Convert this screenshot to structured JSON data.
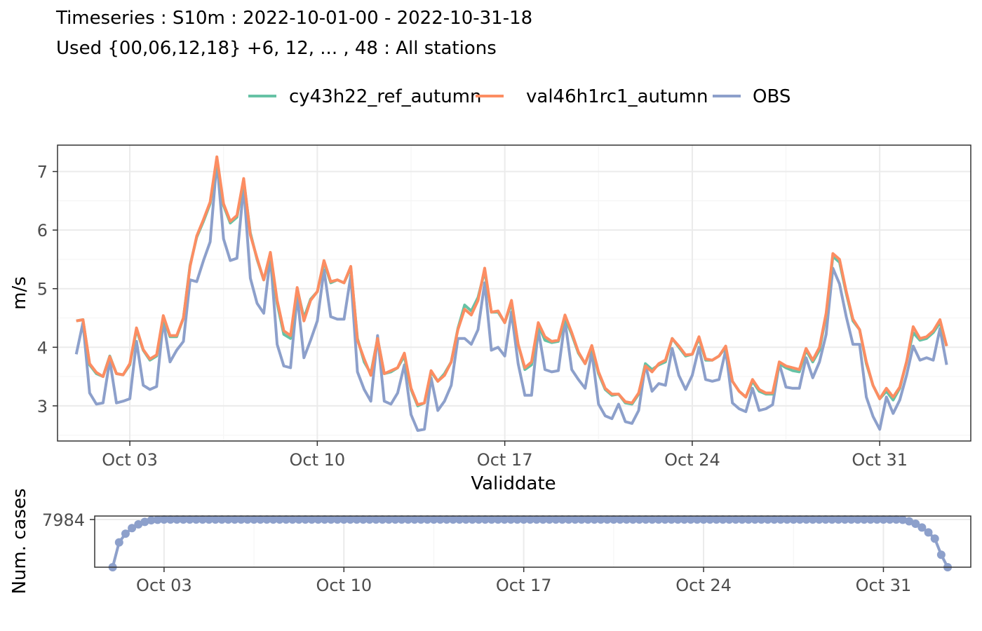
{
  "title_lines": [
    "Timeseries : S10m : 2022-10-01-00 - 2022-10-31-18",
    "Used {00,06,12,18} +6, 12, ... , 48 : All stations"
  ],
  "colors": {
    "cy43h22_ref_autumn": "#66c2a5",
    "val46h1rc1_autumn": "#fc8d62",
    "OBS": "#8da0cb",
    "grid_major": "#ebebeb",
    "grid_minor": "#f5f5f5",
    "panel_border": "#333333",
    "tick_label": "#4d4d4d"
  },
  "chart_data": [
    {
      "type": "line",
      "xlabel": "Validdate",
      "ylabel": "m/s",
      "xlim_days": [
        -0.7,
        33.4
      ],
      "ylim": [
        2.4,
        7.45
      ],
      "x_ticks": [
        {
          "day": 2,
          "label": "Oct 03"
        },
        {
          "day": 9,
          "label": "Oct 10"
        },
        {
          "day": 16,
          "label": "Oct 17"
        },
        {
          "day": 23,
          "label": "Oct 24"
        },
        {
          "day": 30,
          "label": "Oct 31"
        }
      ],
      "y_ticks": [
        3,
        4,
        5,
        6,
        7
      ],
      "grid": true,
      "legend_position": "top",
      "x_start_date": "2022-10-01 06:00",
      "x_step_hours": 6,
      "series": [
        {
          "name": "cy43h22_ref_autumn",
          "values": [
            4.45,
            4.47,
            3.7,
            3.55,
            3.5,
            3.85,
            3.55,
            3.53,
            3.7,
            4.3,
            3.95,
            3.78,
            3.85,
            4.5,
            4.18,
            4.18,
            4.5,
            5.4,
            5.88,
            6.15,
            6.45,
            7.22,
            6.42,
            6.12,
            6.22,
            6.85,
            5.95,
            5.5,
            5.15,
            5.58,
            4.75,
            4.22,
            4.15,
            5.0,
            4.5,
            4.82,
            4.95,
            5.45,
            5.1,
            5.15,
            5.1,
            5.35,
            4.15,
            3.75,
            3.55,
            4.15,
            3.55,
            3.58,
            3.65,
            3.85,
            3.28,
            3.0,
            3.05,
            3.58,
            3.42,
            3.55,
            3.75,
            4.32,
            4.72,
            4.62,
            4.85,
            5.3,
            4.6,
            4.6,
            4.42,
            4.75,
            4.05,
            3.62,
            3.7,
            4.38,
            4.12,
            4.08,
            4.1,
            4.5,
            4.22,
            3.9,
            3.72,
            4.0,
            3.55,
            3.28,
            3.18,
            3.2,
            3.05,
            3.03,
            3.2,
            3.72,
            3.62,
            3.7,
            3.75,
            4.15,
            4.0,
            3.85,
            3.88,
            4.15,
            3.78,
            3.78,
            3.85,
            4.0,
            3.42,
            3.25,
            3.15,
            3.42,
            3.25,
            3.2,
            3.2,
            3.72,
            3.65,
            3.6,
            3.58,
            3.95,
            3.75,
            3.95,
            4.55,
            5.55,
            5.45,
            4.92,
            4.45,
            4.3,
            3.72,
            3.35,
            3.12,
            3.25,
            3.1,
            3.3,
            3.75,
            4.25,
            4.12,
            4.15,
            4.25,
            4.42,
            4.02
          ]
        },
        {
          "name": "val46h1rc1_autumn",
          "values": [
            4.45,
            4.47,
            3.72,
            3.57,
            3.5,
            3.84,
            3.55,
            3.53,
            3.72,
            4.33,
            3.96,
            3.8,
            3.87,
            4.54,
            4.2,
            4.2,
            4.5,
            5.38,
            5.9,
            6.18,
            6.48,
            7.25,
            6.45,
            6.15,
            6.25,
            6.88,
            5.92,
            5.52,
            5.15,
            5.62,
            4.8,
            4.28,
            4.2,
            5.02,
            4.45,
            4.8,
            4.95,
            5.48,
            5.12,
            5.15,
            5.1,
            5.38,
            4.12,
            3.8,
            3.52,
            4.15,
            3.55,
            3.6,
            3.65,
            3.9,
            3.3,
            3.02,
            3.05,
            3.6,
            3.42,
            3.52,
            3.75,
            4.3,
            4.65,
            4.55,
            4.8,
            5.35,
            4.6,
            4.62,
            4.42,
            4.8,
            4.05,
            3.65,
            3.75,
            4.42,
            4.18,
            4.1,
            4.12,
            4.55,
            4.25,
            3.92,
            3.72,
            4.03,
            3.58,
            3.3,
            3.2,
            3.2,
            3.07,
            3.05,
            3.22,
            3.68,
            3.58,
            3.72,
            3.78,
            4.15,
            4.02,
            3.87,
            3.88,
            4.18,
            3.8,
            3.78,
            3.85,
            4.02,
            3.42,
            3.25,
            3.15,
            3.45,
            3.28,
            3.22,
            3.22,
            3.75,
            3.68,
            3.65,
            3.62,
            3.98,
            3.78,
            4.0,
            4.58,
            5.6,
            5.5,
            4.95,
            4.48,
            4.3,
            3.75,
            3.35,
            3.12,
            3.3,
            3.15,
            3.32,
            3.75,
            4.35,
            4.15,
            4.18,
            4.28,
            4.47,
            4.02
          ]
        },
        {
          "name": "OBS",
          "values": [
            3.88,
            4.42,
            3.22,
            3.03,
            3.05,
            3.78,
            3.05,
            3.08,
            3.12,
            4.1,
            3.35,
            3.28,
            3.33,
            4.45,
            3.75,
            3.95,
            4.1,
            5.15,
            5.12,
            5.48,
            5.8,
            7.18,
            5.85,
            5.48,
            5.52,
            6.75,
            5.18,
            4.75,
            4.58,
            5.55,
            4.05,
            3.68,
            3.65,
            4.88,
            3.82,
            4.12,
            4.45,
            5.32,
            4.52,
            4.48,
            4.48,
            5.22,
            3.58,
            3.28,
            3.08,
            4.2,
            3.08,
            3.03,
            3.22,
            3.7,
            2.85,
            2.58,
            2.6,
            3.48,
            2.92,
            3.08,
            3.35,
            4.15,
            4.15,
            4.05,
            4.3,
            5.1,
            3.95,
            4.0,
            3.85,
            4.6,
            3.72,
            3.18,
            3.18,
            4.3,
            3.62,
            3.58,
            3.6,
            4.45,
            3.62,
            3.45,
            3.3,
            3.92,
            3.03,
            2.83,
            2.78,
            3.03,
            2.73,
            2.7,
            2.92,
            3.7,
            3.25,
            3.38,
            3.35,
            3.98,
            3.52,
            3.28,
            3.52,
            4.0,
            3.45,
            3.42,
            3.45,
            3.95,
            3.05,
            2.95,
            2.9,
            3.3,
            2.92,
            2.95,
            3.02,
            3.72,
            3.32,
            3.3,
            3.3,
            3.82,
            3.48,
            3.75,
            4.22,
            5.35,
            5.08,
            4.52,
            4.05,
            4.05,
            3.15,
            2.82,
            2.6,
            3.15,
            2.87,
            3.1,
            3.52,
            4.02,
            3.78,
            3.82,
            3.78,
            4.32,
            3.7
          ]
        }
      ]
    },
    {
      "type": "line",
      "ylabel": "Num. cases",
      "y_ticks": [
        7984
      ],
      "x_ticks": [
        {
          "day": 2,
          "label": "Oct 03"
        },
        {
          "day": 9,
          "label": "Oct 10"
        },
        {
          "day": 16,
          "label": "Oct 17"
        },
        {
          "day": 23,
          "label": "Oct 24"
        },
        {
          "day": 30,
          "label": "Oct 31"
        }
      ],
      "grid": true,
      "series": [
        {
          "name": "OBS",
          "markers": true,
          "edge_values_head": [
            7600,
            7800,
            7870,
            7915,
            7945,
            7965,
            7978,
            7982
          ],
          "plateau_value": 7984,
          "edge_values_tail": [
            7982,
            7970,
            7950,
            7920,
            7880,
            7830,
            7700,
            7600
          ]
        }
      ]
    }
  ]
}
